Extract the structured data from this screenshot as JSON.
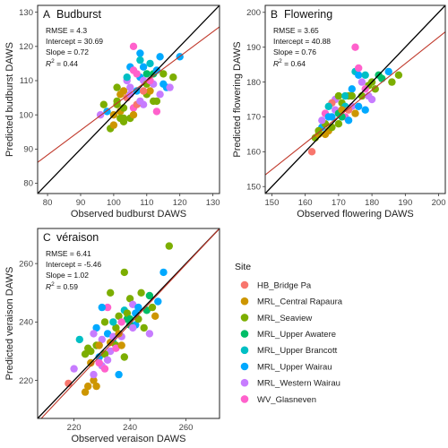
{
  "stat_labels": {
    "rmse": "RMSE = ",
    "intercept": "Intercept = ",
    "slope": "Slope = ",
    "r2_prefix": "R",
    "r2_sup": "2",
    "r2_mid": " = "
  },
  "legend": {
    "title": "Site",
    "items": [
      {
        "label": "HB_Bridge Pa",
        "color": "#F8766D"
      },
      {
        "label": "MRL_Central Rapaura",
        "color": "#CD9600"
      },
      {
        "label": "MRL_Seaview",
        "color": "#7CAE00"
      },
      {
        "label": "MRL_Upper Awatere",
        "color": "#00BE67"
      },
      {
        "label": "MRL_Upper Brancott",
        "color": "#00BFC4"
      },
      {
        "label": "MRL_Upper Wairau",
        "color": "#00A9FF"
      },
      {
        "label": "MRL_Western Wairau",
        "color": "#C77CFF"
      },
      {
        "label": "WV_Glasneven",
        "color": "#FF61CC"
      }
    ]
  },
  "line_colors": {
    "one_to_one": "#000000",
    "regression": "#C0392B"
  },
  "chart_data": [
    {
      "type": "scatter",
      "panel_letter": "A",
      "title": "Budburst",
      "xlabel": "Observed budburst DAWS",
      "ylabel": "Predicted budburst DAWS",
      "xlim": [
        77,
        132
      ],
      "ylim": [
        77,
        132
      ],
      "xticks": [
        80,
        90,
        100,
        110,
        120,
        130
      ],
      "yticks": [
        80,
        90,
        100,
        110,
        120,
        130
      ],
      "stats": {
        "rmse": "4.3",
        "intercept": "30.69",
        "slope": "0.72",
        "r2": "0.44"
      },
      "regression": {
        "intercept": 30.69,
        "slope": 0.72
      },
      "grid": false,
      "points": [
        [
          100,
          100,
          1
        ],
        [
          101,
          103,
          2
        ],
        [
          102,
          101,
          1
        ],
        [
          103,
          99,
          2
        ],
        [
          104,
          105,
          0
        ],
        [
          105,
          108,
          6
        ],
        [
          106,
          102,
          7
        ],
        [
          107,
          107,
          5
        ],
        [
          108,
          111,
          5
        ],
        [
          109,
          110,
          6
        ],
        [
          110,
          106,
          2
        ],
        [
          111,
          115,
          4
        ],
        [
          112,
          112,
          3
        ],
        [
          113,
          104,
          2
        ],
        [
          114,
          117,
          5
        ],
        [
          115,
          112,
          2
        ],
        [
          116,
          108,
          5
        ],
        [
          117,
          108,
          6
        ],
        [
          118,
          111,
          2
        ],
        [
          120,
          117,
          5
        ],
        [
          99,
          96,
          2
        ],
        [
          100,
          97,
          1
        ],
        [
          101,
          104,
          2
        ],
        [
          102,
          106,
          1
        ],
        [
          103,
          102,
          2
        ],
        [
          104,
          110,
          6
        ],
        [
          105,
          114,
          5
        ],
        [
          106,
          113,
          7
        ],
        [
          107,
          112,
          7
        ],
        [
          108,
          118,
          5
        ],
        [
          109,
          103,
          6
        ],
        [
          110,
          109,
          2
        ],
        [
          111,
          107,
          1
        ],
        [
          112,
          109,
          6
        ],
        [
          113,
          101,
          7
        ],
        [
          98,
          101,
          5
        ],
        [
          97,
          103,
          2
        ],
        [
          103,
          107,
          1
        ],
        [
          105,
          99,
          2
        ],
        [
          106,
          100,
          1
        ],
        [
          107,
          103,
          0
        ],
        [
          108,
          104,
          6
        ],
        [
          109,
          114,
          5
        ],
        [
          110,
          112,
          3
        ],
        [
          111,
          110,
          7
        ],
        [
          104,
          111,
          4
        ],
        [
          101,
          108,
          2
        ],
        [
          102,
          99,
          2
        ],
        [
          105,
          106,
          6
        ],
        [
          113,
          113,
          5
        ],
        [
          106,
          120,
          7
        ],
        [
          96,
          100,
          6
        ],
        [
          108,
          116,
          4
        ],
        [
          112,
          104,
          2
        ],
        [
          109,
          107,
          0
        ],
        [
          103,
          98,
          2
        ],
        [
          114,
          106,
          6
        ],
        [
          115,
          109,
          5
        ]
      ]
    },
    {
      "type": "scatter",
      "panel_letter": "B",
      "title": "Flowering",
      "xlabel": "Observed flowering DAWS",
      "ylabel": "Predicted flowering DAWS",
      "xlim": [
        148,
        202
      ],
      "ylim": [
        148,
        202
      ],
      "xticks": [
        150,
        160,
        170,
        180,
        190,
        200
      ],
      "yticks": [
        150,
        160,
        170,
        180,
        190,
        200
      ],
      "stats": {
        "rmse": "3.65",
        "intercept": "40.88",
        "slope": "0.76",
        "r2": "0.64"
      },
      "regression": {
        "intercept": 40.88,
        "slope": 0.76
      },
      "grid": false,
      "points": [
        [
          162,
          160,
          0
        ],
        [
          163,
          164,
          2
        ],
        [
          164,
          165,
          1
        ],
        [
          165,
          167,
          5
        ],
        [
          166,
          168,
          2
        ],
        [
          167,
          166,
          1
        ],
        [
          168,
          170,
          5
        ],
        [
          169,
          172,
          6
        ],
        [
          170,
          171,
          3
        ],
        [
          171,
          174,
          2
        ],
        [
          172,
          173,
          4
        ],
        [
          173,
          176,
          2
        ],
        [
          174,
          178,
          5
        ],
        [
          175,
          183,
          4
        ],
        [
          176,
          182,
          5
        ],
        [
          177,
          180,
          6
        ],
        [
          178,
          182,
          4
        ],
        [
          179,
          179,
          2
        ],
        [
          180,
          180,
          2
        ],
        [
          181,
          178,
          2
        ],
        [
          182,
          182,
          3
        ],
        [
          185,
          183,
          5
        ],
        [
          186,
          180,
          2
        ],
        [
          188,
          182,
          2
        ],
        [
          165,
          169,
          6
        ],
        [
          166,
          171,
          7
        ],
        [
          167,
          170,
          5
        ],
        [
          168,
          167,
          2
        ],
        [
          169,
          175,
          6
        ],
        [
          170,
          168,
          2
        ],
        [
          171,
          172,
          1
        ],
        [
          172,
          170,
          7
        ],
        [
          173,
          169,
          5
        ],
        [
          174,
          173,
          6
        ],
        [
          175,
          171,
          1
        ],
        [
          176,
          184,
          7
        ],
        [
          177,
          176,
          2
        ],
        [
          178,
          172,
          5
        ],
        [
          179,
          176,
          6
        ],
        [
          166,
          165,
          1
        ],
        [
          164,
          166,
          2
        ],
        [
          170,
          176,
          2
        ],
        [
          172,
          176,
          4
        ],
        [
          175,
          190,
          7
        ],
        [
          174,
          176,
          2
        ],
        [
          168,
          174,
          0
        ],
        [
          171,
          170,
          3
        ],
        [
          173,
          172,
          0
        ],
        [
          176,
          173,
          5
        ],
        [
          180,
          175,
          6
        ],
        [
          183,
          181,
          3
        ],
        [
          167,
          173,
          4
        ],
        [
          178,
          178,
          7
        ]
      ]
    },
    {
      "type": "scatter",
      "panel_letter": "C",
      "title": "véraison",
      "xlabel": "Observed veraison DAWS",
      "ylabel": "Predicted veraison DAWS",
      "xlim": [
        207,
        272
      ],
      "ylim": [
        207,
        272
      ],
      "xticks": [
        220,
        240,
        260
      ],
      "yticks": [
        220,
        240,
        260
      ],
      "stats": {
        "rmse": "6.41",
        "intercept": "-5.46",
        "slope": "1.02",
        "r2": "0.59"
      },
      "regression": {
        "intercept": -5.46,
        "slope": 1.02
      },
      "grid": false,
      "points": [
        [
          218,
          219,
          0
        ],
        [
          220,
          224,
          6
        ],
        [
          222,
          234,
          4
        ],
        [
          224,
          229,
          2
        ],
        [
          225,
          231,
          2
        ],
        [
          226,
          226,
          1
        ],
        [
          227,
          220,
          1
        ],
        [
          228,
          232,
          2
        ],
        [
          229,
          228,
          5
        ],
        [
          230,
          225,
          6
        ],
        [
          231,
          240,
          2
        ],
        [
          232,
          236,
          5
        ],
        [
          233,
          230,
          6
        ],
        [
          234,
          233,
          4
        ],
        [
          235,
          238,
          2
        ],
        [
          236,
          242,
          2
        ],
        [
          237,
          235,
          6
        ],
        [
          238,
          244,
          4
        ],
        [
          239,
          241,
          3
        ],
        [
          240,
          248,
          2
        ],
        [
          241,
          246,
          6
        ],
        [
          242,
          239,
          5
        ],
        [
          243,
          245,
          5
        ],
        [
          244,
          250,
          2
        ],
        [
          245,
          238,
          2
        ],
        [
          246,
          244,
          3
        ],
        [
          247,
          236,
          6
        ],
        [
          248,
          245,
          2
        ],
        [
          249,
          242,
          1
        ],
        [
          250,
          247,
          5
        ],
        [
          252,
          257,
          5
        ],
        [
          254,
          266,
          2
        ],
        [
          225,
          218,
          1
        ],
        [
          226,
          230,
          2
        ],
        [
          227,
          222,
          6
        ],
        [
          228,
          238,
          5
        ],
        [
          229,
          226,
          7
        ],
        [
          230,
          234,
          6
        ],
        [
          231,
          229,
          2
        ],
        [
          232,
          245,
          7
        ],
        [
          233,
          233,
          1
        ],
        [
          234,
          235,
          6
        ],
        [
          235,
          232,
          2
        ],
        [
          236,
          222,
          5
        ],
        [
          237,
          240,
          7
        ],
        [
          238,
          228,
          2
        ],
        [
          239,
          243,
          2
        ],
        [
          240,
          239,
          3
        ],
        [
          241,
          238,
          6
        ],
        [
          242,
          243,
          5
        ],
        [
          243,
          241,
          2
        ],
        [
          224,
          216,
          1
        ],
        [
          232,
          227,
          6
        ],
        [
          236,
          236,
          1
        ],
        [
          238,
          257,
          2
        ],
        [
          233,
          250,
          2
        ],
        [
          235,
          231,
          7
        ],
        [
          229,
          232,
          1
        ],
        [
          231,
          224,
          7
        ],
        [
          230,
          245,
          5
        ],
        [
          240,
          241,
          3
        ],
        [
          228,
          218,
          1
        ],
        [
          227,
          236,
          6
        ],
        [
          234,
          240,
          4
        ],
        [
          247,
          249,
          3
        ],
        [
          237,
          232,
          1
        ]
      ]
    }
  ]
}
